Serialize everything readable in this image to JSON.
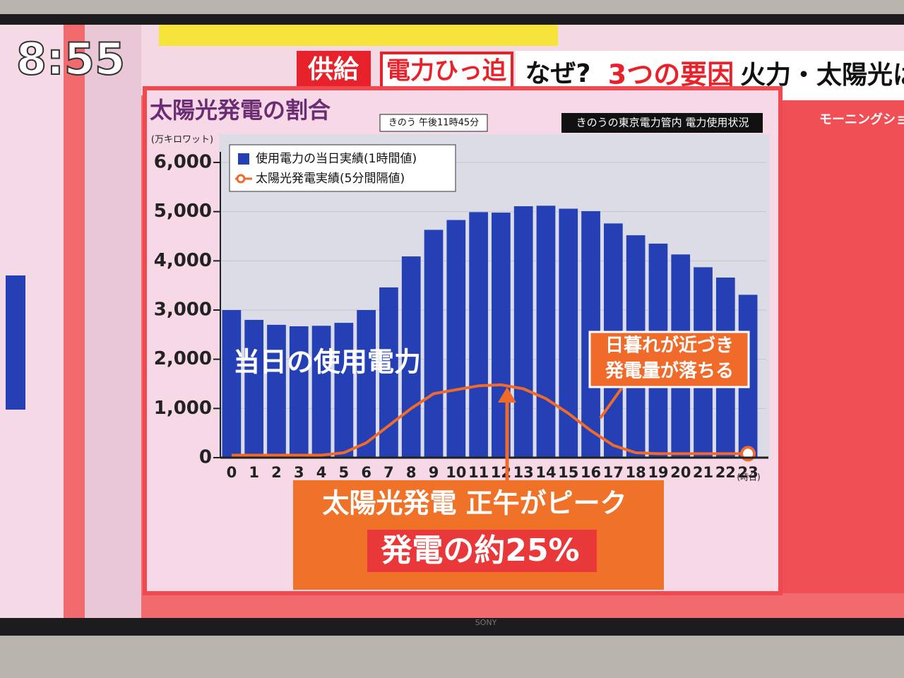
{
  "screen": {
    "clock": "8:55",
    "headline": [
      "供給",
      "電力ひっ迫",
      "なぜ?",
      "3つの要因",
      "火力・太陽光は"
    ],
    "program": "モーニングショ",
    "brand": "SONY"
  },
  "chart_data": {
    "type": "bar",
    "title": "太陽光発電の割合",
    "subtitle": "きのう 午後11時45分",
    "source": "きのうの東京電力管内 電力使用状況",
    "ylabel": "(万キロワット)",
    "xlabel": "(時台)",
    "x": [
      0,
      1,
      2,
      3,
      4,
      5,
      6,
      7,
      8,
      9,
      10,
      11,
      12,
      13,
      14,
      15,
      16,
      17,
      18,
      19,
      20,
      21,
      22,
      23
    ],
    "series": [
      {
        "name": "使用電力の当日実績(1時間値)",
        "type": "bar",
        "color": "#2440b4",
        "values": [
          3000,
          2800,
          2700,
          2670,
          2680,
          2740,
          3000,
          3460,
          4090,
          4630,
          4830,
          4990,
          4980,
          5110,
          5120,
          5060,
          5010,
          4760,
          4520,
          4350,
          4130,
          3870,
          3660,
          3310
        ]
      },
      {
        "name": "太陽光発電実績(5分間隔値)",
        "type": "line",
        "color": "#f06a2a",
        "values": [
          50,
          50,
          50,
          50,
          50,
          100,
          300,
          650,
          1000,
          1300,
          1380,
          1460,
          1480,
          1400,
          1200,
          900,
          550,
          250,
          100,
          80,
          80,
          80,
          80,
          80
        ]
      }
    ],
    "ylim": [
      0,
      6000
    ],
    "yticks": [
      0,
      {
        "value": 1000,
        "label": "1,000"
      },
      {
        "value": 2000,
        "label": "2,000"
      },
      {
        "value": 3000,
        "label": "3,000"
      },
      {
        "value": 4000,
        "label": "4,000"
      },
      {
        "value": 5000,
        "label": "5,000"
      },
      {
        "value": 6000,
        "label": "6,000"
      }
    ],
    "grid": true,
    "annotations": {
      "usage": "当日の使用電力",
      "sunset": [
        "日暮れが近づき",
        "発電量が落ちる"
      ],
      "peak": "太陽光発電 正午がピーク",
      "share": "発電の約25%"
    }
  }
}
